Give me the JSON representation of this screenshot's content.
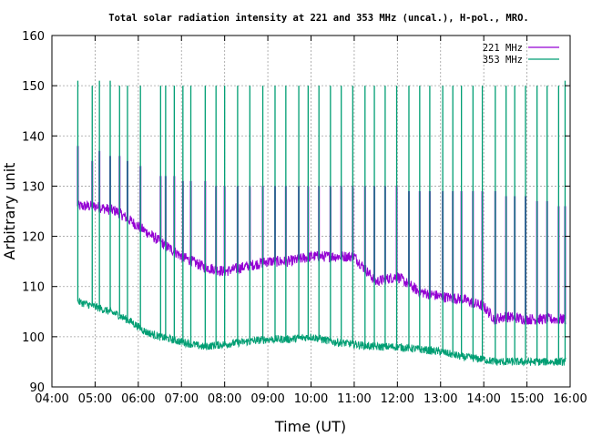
{
  "chart_data": {
    "type": "line",
    "title": "Total solar radiation intensity at 221 and 353 MHz (uncal.), H-pol., MRO.",
    "xlabel": "Time (UT)",
    "ylabel": "Arbitrary unit",
    "xlim": [
      "04:00",
      "16:00"
    ],
    "ylim": [
      90,
      160
    ],
    "x_ticks": [
      "04:00",
      "05:00",
      "06:00",
      "07:00",
      "08:00",
      "09:00",
      "10:00",
      "11:00",
      "12:00",
      "13:00",
      "14:00",
      "15:00",
      "16:00"
    ],
    "y_ticks": [
      "90",
      "100",
      "110",
      "120",
      "130",
      "140",
      "150",
      "160"
    ],
    "grid": true,
    "legend_position": "top-right",
    "series": [
      {
        "name": "221 MHz",
        "color": "#9400d3",
        "x": [
          "04:36",
          "05:00",
          "05:30",
          "05:50",
          "06:10",
          "06:30",
          "07:00",
          "07:30",
          "08:00",
          "08:30",
          "09:00",
          "09:30",
          "10:00",
          "10:30",
          "11:00",
          "11:30",
          "12:00",
          "12:30",
          "13:00",
          "13:30",
          "14:00",
          "14:15",
          "14:30",
          "15:00",
          "15:30",
          "15:54"
        ],
        "values": [
          126,
          126,
          125,
          123,
          121,
          119,
          116,
          114,
          113,
          114,
          115,
          115,
          116,
          116,
          116,
          111,
          112,
          109,
          108,
          107.5,
          106,
          103.5,
          104,
          103.5,
          103.5,
          103.5
        ],
        "spikes": {
          "x": [
            "04:36",
            "04:56",
            "05:06",
            "05:21",
            "05:34",
            "05:45",
            "06:03",
            "06:31",
            "06:38",
            "06:50",
            "07:02",
            "07:13",
            "07:33",
            "07:48",
            "08:00",
            "08:18",
            "08:35",
            "08:53",
            "09:10",
            "09:25",
            "09:43",
            "09:56",
            "10:11",
            "10:27",
            "10:42",
            "10:58",
            "11:15",
            "11:28",
            "11:43",
            "11:59",
            "12:16",
            "12:31",
            "12:45",
            "13:03",
            "13:17",
            "13:29",
            "13:45",
            "13:58",
            "14:16",
            "14:31",
            "14:43",
            "14:58",
            "15:14",
            "15:28",
            "15:44",
            "15:53"
          ],
          "values": [
            138,
            135,
            137,
            136,
            136,
            135,
            134,
            132,
            132,
            132,
            131,
            131,
            131,
            130,
            130,
            130,
            130,
            130,
            130,
            130,
            130,
            130,
            130,
            130,
            130,
            130,
            130,
            130,
            130,
            130,
            129,
            129,
            129,
            129,
            129,
            129,
            129,
            129,
            129,
            128,
            128,
            128,
            127,
            127,
            126,
            126
          ]
        }
      },
      {
        "name": "353 MHz",
        "color": "#009e73",
        "x": [
          "04:36",
          "05:00",
          "05:30",
          "05:50",
          "06:10",
          "06:30",
          "07:00",
          "07:30",
          "08:00",
          "08:30",
          "09:00",
          "09:30",
          "10:00",
          "10:30",
          "11:00",
          "11:30",
          "12:00",
          "12:30",
          "13:00",
          "13:30",
          "14:00",
          "14:15",
          "14:30",
          "15:00",
          "15:30",
          "15:54"
        ],
        "values": [
          107,
          106,
          104.5,
          103,
          101,
          100,
          99,
          98,
          98.5,
          99,
          99.5,
          99.5,
          100,
          99,
          98.5,
          98,
          98,
          97.5,
          97,
          96,
          95.5,
          95,
          95,
          95,
          95,
          95
        ],
        "spikes": {
          "x": [
            "04:36",
            "04:56",
            "05:06",
            "05:21",
            "05:34",
            "05:45",
            "06:03",
            "06:31",
            "06:38",
            "06:50",
            "07:02",
            "07:13",
            "07:33",
            "07:48",
            "08:00",
            "08:18",
            "08:35",
            "08:53",
            "09:10",
            "09:25",
            "09:43",
            "09:56",
            "10:11",
            "10:27",
            "10:42",
            "10:58",
            "11:15",
            "11:28",
            "11:43",
            "11:59",
            "12:16",
            "12:31",
            "12:45",
            "13:03",
            "13:17",
            "13:29",
            "13:45",
            "13:58",
            "14:16",
            "14:31",
            "14:43",
            "14:58",
            "15:14",
            "15:28",
            "15:44",
            "15:53"
          ],
          "values": [
            151,
            150,
            151,
            151,
            150,
            150,
            150,
            150,
            150,
            150,
            150,
            150,
            150,
            150,
            150,
            150,
            150,
            150,
            150,
            150,
            150,
            150,
            150,
            150,
            150,
            150,
            150,
            150,
            150,
            150,
            150,
            150,
            150,
            150,
            150,
            150,
            150,
            150,
            150,
            150,
            150,
            150,
            150,
            150,
            150,
            151
          ]
        }
      }
    ]
  }
}
